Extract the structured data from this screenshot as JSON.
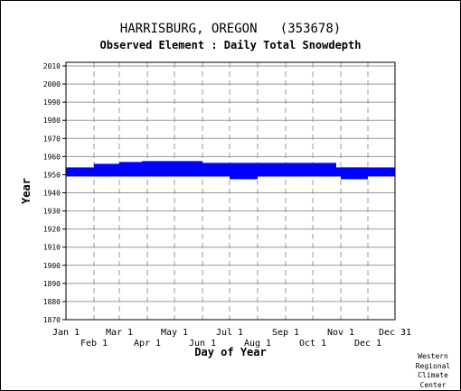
{
  "chart_data": {
    "type": "bar",
    "title": "HARRISBURG, OREGON   (353678)",
    "subtitle": "Observed Element : Daily Total Snowdepth",
    "xlabel": "Day of Year",
    "ylabel": "Year",
    "ylim": [
      1870,
      2012
    ],
    "xlim": [
      "Jan 1",
      "Dec 31"
    ],
    "grid": true,
    "y_ticks": [
      2010,
      2000,
      1990,
      1980,
      1970,
      1960,
      1950,
      1940,
      1930,
      1920,
      1910,
      1900,
      1890,
      1880,
      1870
    ],
    "x_ticks_upper": [
      {
        "label": "Jan 1",
        "day": 1
      },
      {
        "label": "Mar 1",
        "day": 60
      },
      {
        "label": "May 1",
        "day": 121
      },
      {
        "label": "Jul 1",
        "day": 182
      },
      {
        "label": "Sep 1",
        "day": 244
      },
      {
        "label": "Nov 1",
        "day": 305
      },
      {
        "label": "Dec 31",
        "day": 365
      }
    ],
    "x_ticks_lower": [
      {
        "label": "Feb 1",
        "day": 32
      },
      {
        "label": "Apr 1",
        "day": 91
      },
      {
        "label": "Jun 1",
        "day": 152
      },
      {
        "label": "Aug 1",
        "day": 213
      },
      {
        "label": "Oct 1",
        "day": 274
      },
      {
        "label": "Dec 1",
        "day": 335
      }
    ],
    "series_color": "#0000ff",
    "records": [
      {
        "start_day": 1,
        "end_day": 365,
        "year_low": 1949,
        "year_high": 1954
      },
      {
        "start_day": 32,
        "end_day": 258,
        "year_low": 1949,
        "year_high": 1956
      },
      {
        "start_day": 60,
        "end_day": 120,
        "year_low": 1949,
        "year_high": 1957
      },
      {
        "start_day": 85,
        "end_day": 152,
        "year_low": 1949,
        "year_high": 1957.5
      },
      {
        "start_day": 152,
        "end_day": 300,
        "year_low": 1949,
        "year_high": 1956.5
      },
      {
        "start_day": 182,
        "end_day": 213,
        "year_low": 1947.5,
        "year_high": 1955
      },
      {
        "start_day": 305,
        "end_day": 335,
        "year_low": 1947.5,
        "year_high": 1954
      }
    ]
  },
  "credit": {
    "lines": [
      "Western",
      "Regional",
      "Climate",
      "Center"
    ]
  }
}
